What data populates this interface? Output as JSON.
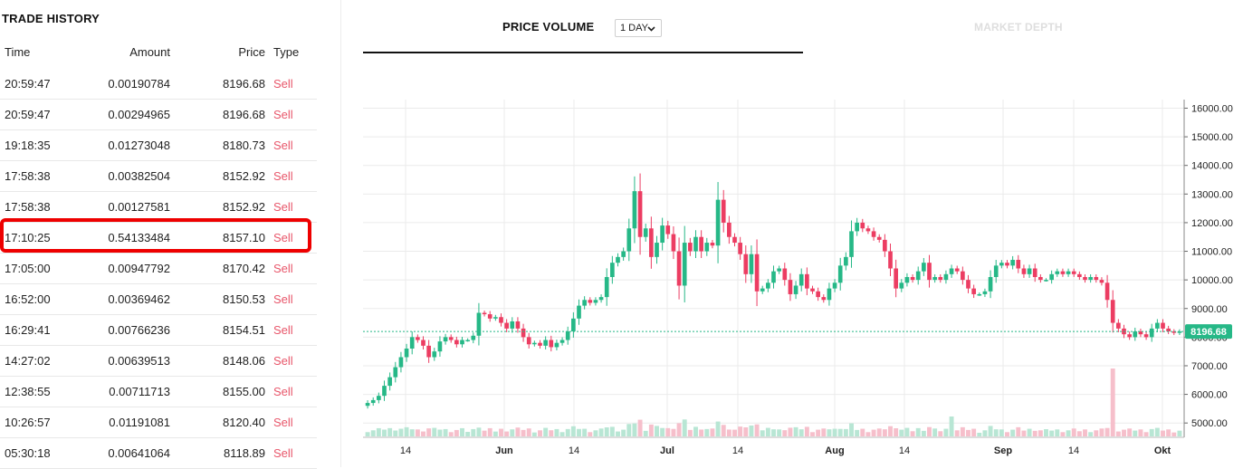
{
  "trade_history": {
    "title": "TRADE HISTORY",
    "columns": [
      "Time",
      "Amount",
      "Price",
      "Type"
    ],
    "rows": [
      {
        "time": "20:59:47",
        "amount": "0.00190784",
        "price": "8196.68",
        "type": "Sell"
      },
      {
        "time": "20:59:47",
        "amount": "0.00294965",
        "price": "8196.68",
        "type": "Sell"
      },
      {
        "time": "19:18:35",
        "amount": "0.01273048",
        "price": "8180.73",
        "type": "Sell"
      },
      {
        "time": "17:58:38",
        "amount": "0.00382504",
        "price": "8152.92",
        "type": "Sell"
      },
      {
        "time": "17:58:38",
        "amount": "0.00127581",
        "price": "8152.92",
        "type": "Sell"
      },
      {
        "time": "17:10:25",
        "amount": "0.54133484",
        "price": "8157.10",
        "type": "Sell"
      },
      {
        "time": "17:05:00",
        "amount": "0.00947792",
        "price": "8170.42",
        "type": "Sell"
      },
      {
        "time": "16:52:00",
        "amount": "0.00369462",
        "price": "8150.53",
        "type": "Sell"
      },
      {
        "time": "16:29:41",
        "amount": "0.00766236",
        "price": "8154.51",
        "type": "Sell"
      },
      {
        "time": "14:27:02",
        "amount": "0.00639513",
        "price": "8148.06",
        "type": "Sell"
      },
      {
        "time": "12:38:55",
        "amount": "0.00711713",
        "price": "8155.00",
        "type": "Sell"
      },
      {
        "time": "10:26:57",
        "amount": "0.01191081",
        "price": "8120.40",
        "type": "Sell"
      },
      {
        "time": "05:30:18",
        "amount": "0.00641064",
        "price": "8118.89",
        "type": "Sell"
      }
    ]
  },
  "tabs": {
    "price_volume": "PRICE VOLUME",
    "market_depth": "MARKET DEPTH"
  },
  "interval": {
    "selected": "1 DAY"
  },
  "colors": {
    "up": "#26b887",
    "down": "#ec3d62",
    "up_volume": "#b8e6d4",
    "down_volume": "#f6bfcb",
    "highlight": "#ee0000",
    "current_price": "#26b887"
  },
  "chart_data": {
    "type": "candlestick",
    "y_ticks": [
      "16000.00",
      "15000.00",
      "14000.00",
      "13000.00",
      "12000.00",
      "11000.00",
      "10000.00",
      "9000.00",
      "8000.00",
      "7000.00",
      "6000.00",
      "5000.00"
    ],
    "x_ticks": [
      "14",
      "Jun",
      "14",
      "Jul",
      "14",
      "Aug",
      "14",
      "Sep",
      "14",
      "Okt"
    ],
    "ylim": [
      4500,
      16300
    ],
    "current_price": 8196.68,
    "current_price_label": "8196.68",
    "closes": [
      5700,
      5800,
      5950,
      6300,
      6600,
      6950,
      7300,
      7600,
      8000,
      7900,
      7700,
      7300,
      7500,
      7850,
      8000,
      7900,
      7750,
      7900,
      7900,
      8050,
      8850,
      8800,
      8650,
      8700,
      8500,
      8300,
      8550,
      8300,
      8000,
      7750,
      7800,
      7700,
      7900,
      7650,
      7800,
      7900,
      8200,
      8650,
      9100,
      9300,
      9200,
      9300,
      9400,
      10100,
      10600,
      10800,
      11000,
      11800,
      13100,
      11500,
      11800,
      10800,
      11300,
      11900,
      11600,
      11000,
      9800,
      11300,
      11000,
      11500,
      11000,
      11300,
      11200,
      12800,
      12000,
      11500,
      11300,
      10900,
      10200,
      10900,
      9600,
      9700,
      9900,
      10300,
      10400,
      10000,
      9500,
      9800,
      10200,
      9700,
      9600,
      9400,
      9300,
      9700,
      9900,
      10500,
      10800,
      11700,
      12000,
      11800,
      11700,
      11500,
      11400,
      11000,
      10400,
      9700,
      9900,
      10100,
      10000,
      10300,
      10600,
      10000,
      10100,
      10000,
      10200,
      10400,
      10300,
      10000,
      9700,
      9500,
      9500,
      9600,
      10100,
      10500,
      10600,
      10500,
      10700,
      10400,
      10200,
      10400,
      10100,
      10000,
      10000,
      10200,
      10300,
      10200,
      10300,
      10200,
      10100,
      10000,
      10100,
      10000,
      9900,
      9300,
      8500,
      8300,
      8100,
      8000,
      8200,
      8100,
      8000,
      8300,
      8500,
      8300,
      8200,
      8150,
      8196.68
    ]
  }
}
